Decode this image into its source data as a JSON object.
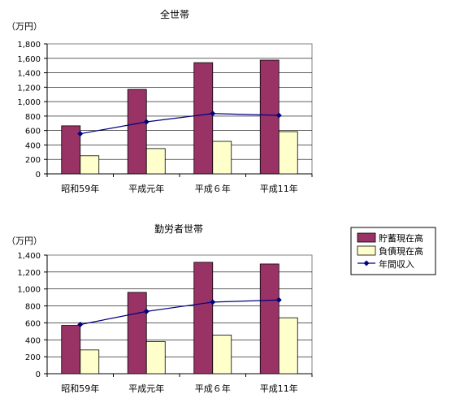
{
  "chart_data": [
    {
      "type": "bar",
      "title": "全世帯",
      "unit_label": "（万円）",
      "categories": [
        "昭和59年",
        "平成元年",
        "平成６年",
        "平成11年"
      ],
      "ylim": [
        0,
        1800
      ],
      "ytick_step": 200,
      "ytick_labels": [
        "0",
        "200",
        "400",
        "600",
        "800",
        "1,000",
        "1,200",
        "1,400",
        "1,600",
        "1,800"
      ],
      "series": [
        {
          "name": "貯蓄現在高",
          "type": "bar",
          "color": "#993366",
          "values": [
            665,
            1170,
            1540,
            1575
          ]
        },
        {
          "name": "負債現在高",
          "type": "bar",
          "color": "#FFFFCC",
          "values": [
            250,
            350,
            450,
            585
          ]
        },
        {
          "name": "年間収入",
          "type": "line",
          "color": "#000080",
          "values": [
            555,
            720,
            835,
            810
          ]
        }
      ]
    },
    {
      "type": "bar",
      "title": "勤労者世帯",
      "unit_label": "（万円）",
      "categories": [
        "昭和59年",
        "平成元年",
        "平成６年",
        "平成11年"
      ],
      "ylim": [
        0,
        1400
      ],
      "ytick_step": 200,
      "ytick_labels": [
        "0",
        "200",
        "400",
        "600",
        "800",
        "1,000",
        "1,200",
        "1,400"
      ],
      "series": [
        {
          "name": "貯蓄現在高",
          "type": "bar",
          "color": "#993366",
          "values": [
            570,
            960,
            1315,
            1295
          ]
        },
        {
          "name": "負債現在高",
          "type": "bar",
          "color": "#FFFFCC",
          "values": [
            280,
            380,
            455,
            660
          ]
        },
        {
          "name": "年間収入",
          "type": "line",
          "color": "#000080",
          "values": [
            580,
            735,
            845,
            870
          ]
        }
      ]
    }
  ],
  "legend": {
    "items": [
      {
        "label": "貯蓄現在高",
        "kind": "bar",
        "color": "#993366"
      },
      {
        "label": "負債現在高",
        "kind": "bar",
        "color": "#FFFFCC"
      },
      {
        "label": "年間収入",
        "kind": "line",
        "color": "#000080"
      }
    ]
  }
}
